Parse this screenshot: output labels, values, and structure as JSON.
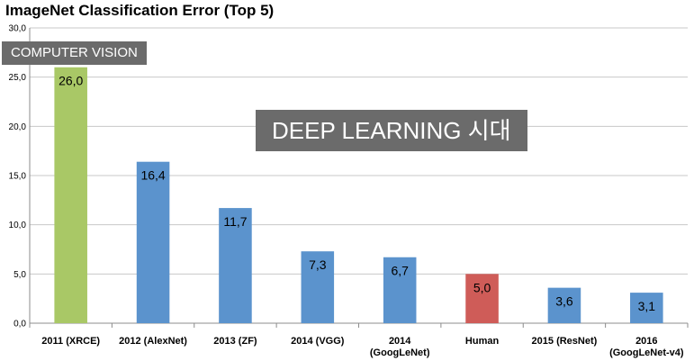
{
  "chart_data": {
    "type": "bar",
    "title": "ImageNet Classification Error (Top 5)",
    "xlabel": "",
    "ylabel": "",
    "ylim": [
      0,
      30
    ],
    "yticks": [
      "0,0",
      "5,0",
      "10,0",
      "15,0",
      "20,0",
      "25,0",
      "30,0"
    ],
    "grid": true,
    "categories": [
      [
        "2011 (XRCE)"
      ],
      [
        "2012 (AlexNet)"
      ],
      [
        "2013 (ZF)"
      ],
      [
        "2014 (VGG)"
      ],
      [
        "2014",
        "(GoogLeNet)"
      ],
      [
        "Human"
      ],
      [
        "2015 (ResNet)"
      ],
      [
        "2016",
        "(GoogLeNet-v4)"
      ]
    ],
    "values": [
      26.0,
      16.4,
      11.7,
      7.3,
      6.7,
      5.0,
      3.6,
      3.1
    ],
    "value_labels": [
      "26,0",
      "16,4",
      "11,7",
      "7,3",
      "6,7",
      "5,0",
      "3,6",
      "3,1"
    ],
    "colors": [
      "#a9c866",
      "#5b93cd",
      "#5b93cd",
      "#5b93cd",
      "#5b93cd",
      "#cf5c58",
      "#5b93cd",
      "#5b93cd"
    ]
  },
  "annotations": {
    "computer_vision": "COMPUTER VISION",
    "deep_learning": "DEEP LEARNING 시대"
  },
  "theme": {
    "grid_color": "#c8c8c8",
    "axis_color": "#8c8c8c",
    "badge_color": "#6b6b6b"
  }
}
